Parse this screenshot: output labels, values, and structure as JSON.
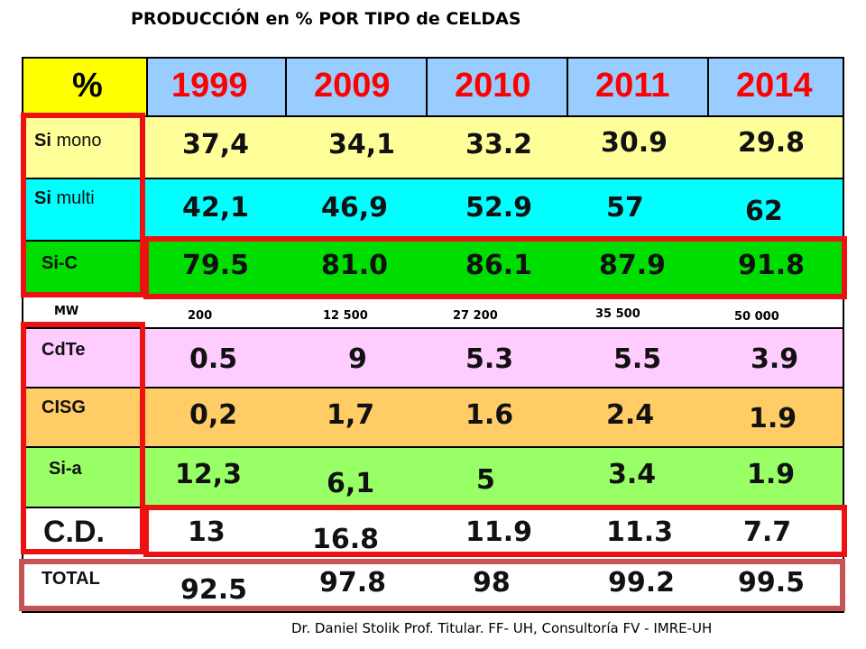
{
  "title": "PRODUCCIÓN en % POR TIPO de CELDAS",
  "footer": "Dr. Daniel Stolik Prof. Titular. FF- UH, Consultoría FV - IMRE-UH",
  "colors": {
    "header_row": "#99ccff",
    "header_corner": "#ffff00",
    "year_text": "#ff0000",
    "si_mono": "#ffff99",
    "si_multi": "#00ffff",
    "si_c": "#00dd00",
    "mw": "#ffffff",
    "cdte": "#ffccff",
    "cisg": "#ffcc66",
    "si_a": "#99ff66",
    "cd": "#ffffff",
    "total": "#ffffff",
    "highlight": "#ee1111",
    "total_highlight": "#c55555"
  },
  "table": {
    "corner": "%",
    "years": [
      "1999",
      "2009",
      "2010",
      "2011",
      "2014"
    ],
    "rows": [
      {
        "label_sym": "Si",
        "label_rest": " mono",
        "values": [
          "37,4",
          "34,1",
          "33.2",
          "30.9",
          "29.8"
        ]
      },
      {
        "label_sym": "Si",
        "label_rest": " multi",
        "values": [
          "42,1",
          "46,9",
          "52.9",
          "57",
          "62"
        ]
      },
      {
        "label": "Si-C",
        "values": [
          "79.5",
          "81.0",
          "86.1",
          "87.9",
          "91.8"
        ]
      },
      {
        "label": "MW",
        "values": [
          "200",
          "12 500",
          "27 200",
          "35 500",
          "50 000"
        ]
      },
      {
        "label": "CdTe",
        "values": [
          "0.5",
          "9",
          "5.3",
          "5.5",
          "3.9"
        ]
      },
      {
        "label": "CISG",
        "values": [
          "0,2",
          "1,7",
          "1.6",
          "2.4",
          "1.9"
        ]
      },
      {
        "label": "Si-a",
        "values": [
          "12,3",
          "6,1",
          "5",
          "3.4",
          "1.9"
        ]
      },
      {
        "label": "C.D.",
        "values": [
          "13",
          "16.8",
          "11.9",
          "11.3",
          "7.7"
        ]
      },
      {
        "label": "TOTAL",
        "values": [
          "92.5",
          "97.8",
          "98",
          "99.2",
          "99.5"
        ]
      }
    ]
  }
}
